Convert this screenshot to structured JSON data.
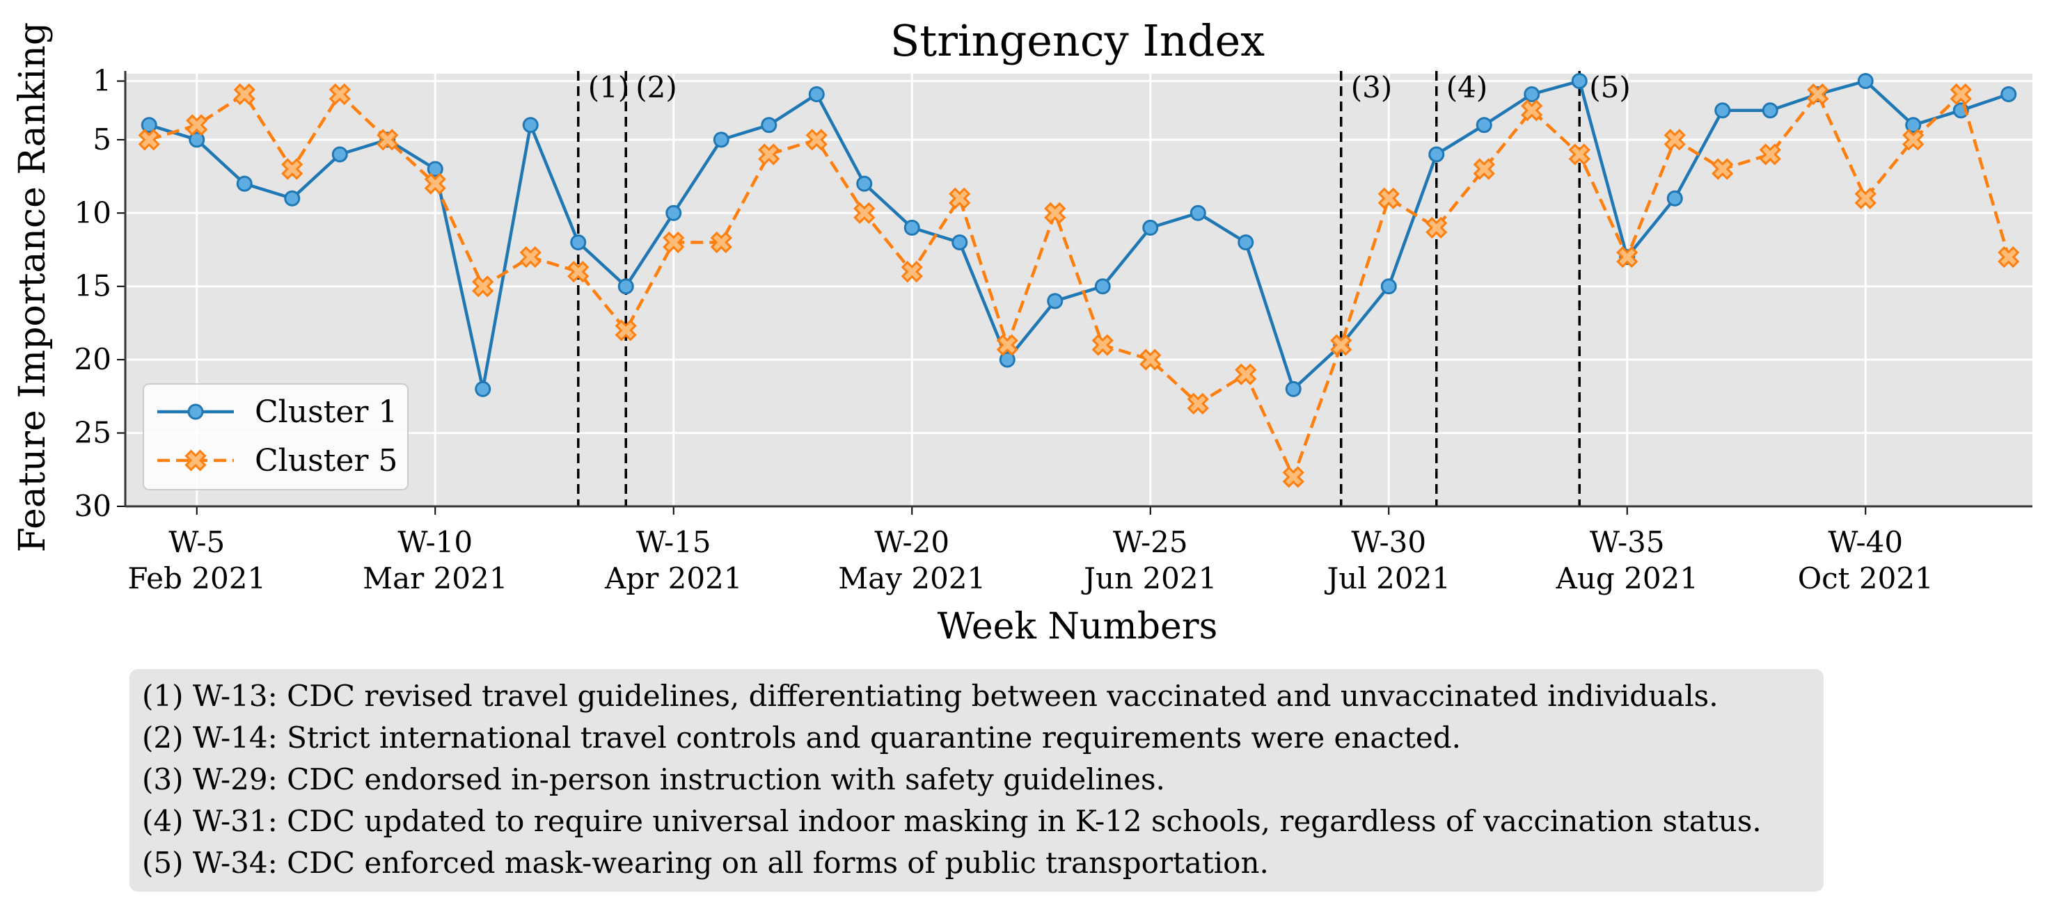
{
  "chart_data": {
    "type": "line",
    "title": "Stringency Index",
    "xlabel": "Week Numbers",
    "ylabel": "Feature Importance Ranking",
    "xlim": [
      3.5,
      43.5
    ],
    "ylim": [
      30,
      0.5
    ],
    "y_inverted": true,
    "y_ticks": [
      1,
      5,
      10,
      15,
      20,
      25,
      30
    ],
    "x_ticks": [
      {
        "x": 5,
        "week": "W-5",
        "month": "Feb 2021"
      },
      {
        "x": 10,
        "week": "W-10",
        "month": "Mar 2021"
      },
      {
        "x": 15,
        "week": "W-15",
        "month": "Apr 2021"
      },
      {
        "x": 20,
        "week": "W-20",
        "month": "May 2021"
      },
      {
        "x": 25,
        "week": "W-25",
        "month": "Jun 2021"
      },
      {
        "x": 30,
        "week": "W-30",
        "month": "Jul 2021"
      },
      {
        "x": 35,
        "week": "W-35",
        "month": "Aug 2021"
      },
      {
        "x": 40,
        "week": "W-40",
        "month": "Oct 2021"
      }
    ],
    "grid": true,
    "legend_position": "lower-left",
    "x": [
      4,
      5,
      6,
      7,
      8,
      9,
      10,
      11,
      12,
      13,
      14,
      15,
      16,
      17,
      18,
      19,
      20,
      21,
      22,
      23,
      24,
      25,
      26,
      27,
      28,
      29,
      30,
      31,
      32,
      33,
      34,
      35,
      36,
      37,
      38,
      39,
      40,
      41,
      42,
      43
    ],
    "series": [
      {
        "name": "Cluster 1",
        "color": "#1f77b4",
        "marker_fill": "#5dade2",
        "style": "solid",
        "marker": "circle",
        "values": [
          4,
          5,
          8,
          9,
          6,
          5,
          7,
          22,
          4,
          12,
          15,
          10,
          5,
          4,
          1.9,
          8,
          11,
          12,
          20,
          16,
          15,
          11,
          10,
          12,
          22,
          19,
          15,
          6,
          4,
          1.9,
          1,
          13,
          9,
          3,
          3,
          1.9,
          1,
          4,
          3,
          1.9
        ]
      },
      {
        "name": "Cluster 5",
        "color": "#ff7f0e",
        "marker_fill": "#ffbb78",
        "style": "dashed",
        "marker": "x",
        "values": [
          5,
          4,
          1.9,
          7,
          1.9,
          5,
          8,
          15,
          13,
          14,
          18,
          12,
          12,
          6,
          5,
          10,
          14,
          9,
          19,
          10,
          19,
          20,
          23,
          21,
          28,
          19,
          9,
          11,
          7,
          3,
          6,
          13,
          5,
          7,
          6,
          1.9,
          9,
          5,
          1.9,
          13
        ]
      }
    ],
    "event_markers": [
      {
        "x": 13,
        "label": "(1)"
      },
      {
        "x": 14,
        "label": "(2)"
      },
      {
        "x": 29,
        "label": "(3)"
      },
      {
        "x": 31,
        "label": "(4)"
      },
      {
        "x": 34,
        "label": "(5)"
      }
    ],
    "notes": [
      "(1) W-13: CDC revised travel guidelines, differentiating between vaccinated and unvaccinated individuals.",
      "(2) W-14: Strict international travel controls and quarantine requirements were enacted.",
      "(3) W-29: CDC endorsed in-person instruction with safety guidelines.",
      "(4) W-31: CDC updated to require universal indoor masking in K-12 schools, regardless of vaccination status.",
      "(5) W-34: CDC enforced mask-wearing on all forms of public transportation."
    ],
    "plot_background": "#e5e5e5",
    "notes_background": "#e5e5e5"
  }
}
